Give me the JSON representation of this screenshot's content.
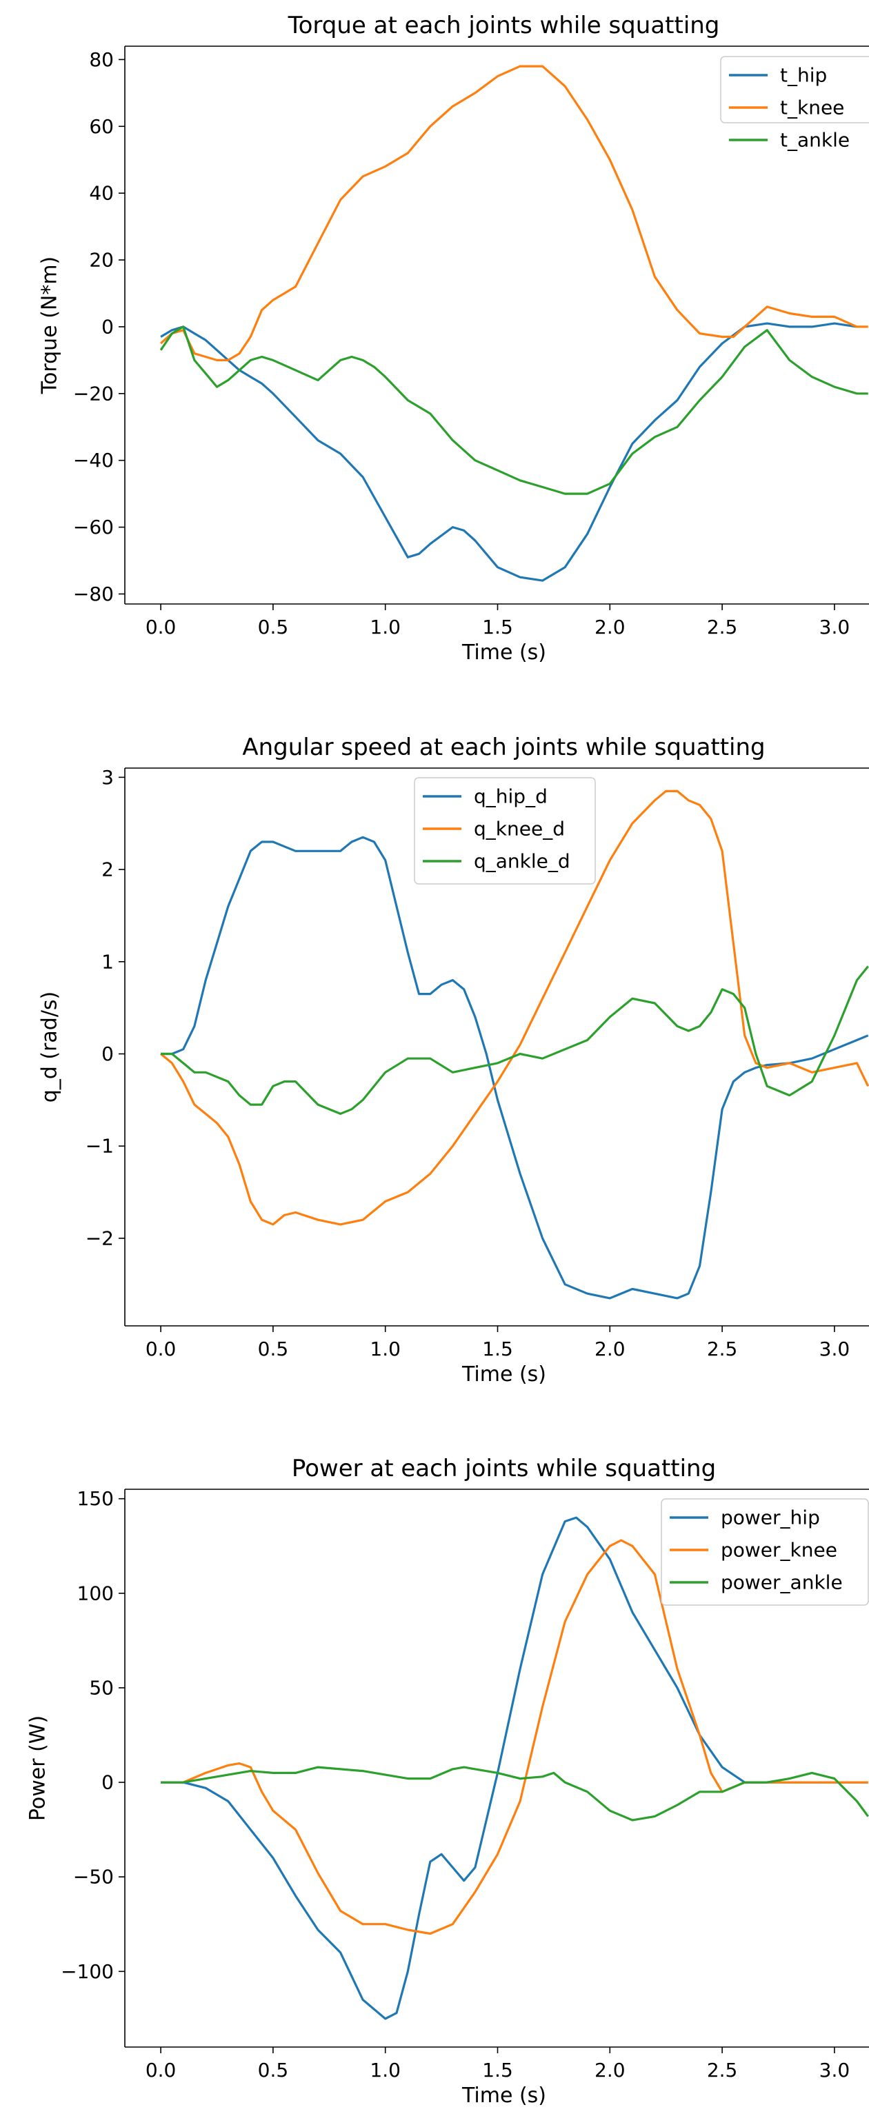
{
  "colors": {
    "blue": "#1f77b4",
    "orange": "#ff7f0e",
    "green": "#2ca02c"
  },
  "chart_data": [
    {
      "type": "line",
      "title": "Torque at each joints while squatting",
      "xlabel": "Time (s)",
      "ylabel": "Torque (N*m)",
      "xlim": [
        -0.16,
        3.16
      ],
      "ylim": [
        -83,
        84
      ],
      "xticks": [
        0.0,
        0.5,
        1.0,
        1.5,
        2.0,
        2.5,
        3.0
      ],
      "xtick_labels": [
        "0.0",
        "0.5",
        "1.0",
        "1.5",
        "2.0",
        "2.5",
        "3.0"
      ],
      "yticks": [
        -80,
        -60,
        -40,
        -20,
        0,
        20,
        40,
        60,
        80
      ],
      "ytick_labels": [
        "−80",
        "−60",
        "−40",
        "−20",
        "0",
        "20",
        "40",
        "60",
        "80"
      ],
      "legend": "top-right",
      "grid": false,
      "series": [
        {
          "name": "t_hip",
          "color": "#1f77b4",
          "x": [
            0.0,
            0.05,
            0.1,
            0.15,
            0.2,
            0.25,
            0.3,
            0.35,
            0.4,
            0.45,
            0.5,
            0.6,
            0.7,
            0.8,
            0.9,
            1.0,
            1.1,
            1.15,
            1.2,
            1.3,
            1.35,
            1.4,
            1.5,
            1.6,
            1.7,
            1.8,
            1.9,
            2.0,
            2.1,
            2.2,
            2.3,
            2.4,
            2.5,
            2.6,
            2.7,
            2.8,
            2.9,
            3.0,
            3.1
          ],
          "y": [
            -3,
            -1,
            0,
            -2,
            -4,
            -7,
            -10,
            -13,
            -15,
            -17,
            -20,
            -27,
            -34,
            -38,
            -45,
            -57,
            -69,
            -68,
            -65,
            -60,
            -61,
            -64,
            -72,
            -75,
            -76,
            -72,
            -62,
            -48,
            -35,
            -28,
            -22,
            -12,
            -5,
            0,
            1,
            0,
            0,
            1,
            0
          ]
        },
        {
          "name": "t_knee",
          "color": "#ff7f0e",
          "x": [
            0.0,
            0.05,
            0.1,
            0.15,
            0.2,
            0.25,
            0.3,
            0.35,
            0.4,
            0.45,
            0.5,
            0.6,
            0.7,
            0.8,
            0.9,
            1.0,
            1.1,
            1.2,
            1.3,
            1.4,
            1.5,
            1.6,
            1.7,
            1.8,
            1.9,
            2.0,
            2.1,
            2.2,
            2.3,
            2.4,
            2.5,
            2.55,
            2.6,
            2.7,
            2.8,
            2.9,
            3.0,
            3.1,
            3.15
          ],
          "y": [
            -5,
            -2,
            -1,
            -8,
            -9,
            -10,
            -10,
            -8,
            -3,
            5,
            8,
            12,
            25,
            38,
            45,
            48,
            52,
            60,
            66,
            70,
            75,
            78,
            78,
            72,
            62,
            50,
            35,
            15,
            5,
            -2,
            -3,
            -3,
            0,
            6,
            4,
            3,
            3,
            0,
            0
          ]
        },
        {
          "name": "t_ankle",
          "color": "#2ca02c",
          "x": [
            0.0,
            0.05,
            0.1,
            0.15,
            0.2,
            0.25,
            0.3,
            0.35,
            0.4,
            0.45,
            0.5,
            0.6,
            0.7,
            0.8,
            0.85,
            0.9,
            0.95,
            1.0,
            1.1,
            1.2,
            1.3,
            1.4,
            1.5,
            1.6,
            1.7,
            1.8,
            1.9,
            2.0,
            2.1,
            2.2,
            2.3,
            2.4,
            2.5,
            2.6,
            2.7,
            2.8,
            2.9,
            3.0,
            3.1,
            3.15
          ],
          "y": [
            -7,
            -2,
            0,
            -10,
            -14,
            -18,
            -16,
            -13,
            -10,
            -9,
            -10,
            -13,
            -16,
            -10,
            -9,
            -10,
            -12,
            -15,
            -22,
            -26,
            -34,
            -40,
            -43,
            -46,
            -48,
            -50,
            -50,
            -47,
            -38,
            -33,
            -30,
            -22,
            -15,
            -6,
            -1,
            -10,
            -15,
            -18,
            -20,
            -20
          ]
        }
      ]
    },
    {
      "type": "line",
      "title": "Angular speed at each joints while squatting",
      "xlabel": "Time (s)",
      "ylabel": "q_d (rad/s)",
      "xlim": [
        -0.16,
        3.16
      ],
      "ylim": [
        -2.95,
        3.1
      ],
      "xticks": [
        0.0,
        0.5,
        1.0,
        1.5,
        2.0,
        2.5,
        3.0
      ],
      "xtick_labels": [
        "0.0",
        "0.5",
        "1.0",
        "1.5",
        "2.0",
        "2.5",
        "3.0"
      ],
      "yticks": [
        -2,
        -1,
        0,
        1,
        2,
        3
      ],
      "ytick_labels": [
        "−2",
        "−1",
        "0",
        "1",
        "2",
        "3"
      ],
      "legend": "upper center",
      "grid": false,
      "series": [
        {
          "name": "q_hip_d",
          "color": "#1f77b4",
          "x": [
            0.0,
            0.05,
            0.1,
            0.15,
            0.2,
            0.25,
            0.3,
            0.35,
            0.4,
            0.45,
            0.5,
            0.55,
            0.6,
            0.7,
            0.8,
            0.85,
            0.9,
            0.95,
            1.0,
            1.05,
            1.1,
            1.15,
            1.2,
            1.25,
            1.3,
            1.35,
            1.4,
            1.45,
            1.5,
            1.6,
            1.7,
            1.8,
            1.9,
            2.0,
            2.1,
            2.2,
            2.3,
            2.35,
            2.4,
            2.45,
            2.5,
            2.55,
            2.6,
            2.65,
            2.7,
            2.8,
            2.9,
            3.0,
            3.1,
            3.15
          ],
          "y": [
            0.0,
            0.0,
            0.05,
            0.3,
            0.8,
            1.2,
            1.6,
            1.9,
            2.2,
            2.3,
            2.3,
            2.25,
            2.2,
            2.2,
            2.2,
            2.3,
            2.35,
            2.3,
            2.1,
            1.6,
            1.1,
            0.65,
            0.65,
            0.75,
            0.8,
            0.7,
            0.4,
            0.0,
            -0.5,
            -1.3,
            -2.0,
            -2.5,
            -2.6,
            -2.65,
            -2.55,
            -2.6,
            -2.65,
            -2.6,
            -2.3,
            -1.5,
            -0.6,
            -0.3,
            -0.2,
            -0.15,
            -0.12,
            -0.1,
            -0.05,
            0.05,
            0.15,
            0.2
          ]
        },
        {
          "name": "q_knee_d",
          "color": "#ff7f0e",
          "x": [
            0.0,
            0.05,
            0.1,
            0.15,
            0.2,
            0.25,
            0.3,
            0.35,
            0.4,
            0.45,
            0.5,
            0.55,
            0.6,
            0.7,
            0.8,
            0.9,
            1.0,
            1.1,
            1.2,
            1.3,
            1.4,
            1.5,
            1.6,
            1.7,
            1.8,
            1.9,
            2.0,
            2.1,
            2.2,
            2.25,
            2.3,
            2.35,
            2.4,
            2.45,
            2.5,
            2.55,
            2.6,
            2.65,
            2.7,
            2.8,
            2.9,
            3.0,
            3.1,
            3.15
          ],
          "y": [
            0.0,
            -0.1,
            -0.3,
            -0.55,
            -0.65,
            -0.75,
            -0.9,
            -1.2,
            -1.6,
            -1.8,
            -1.85,
            -1.75,
            -1.72,
            -1.8,
            -1.85,
            -1.8,
            -1.6,
            -1.5,
            -1.3,
            -1.0,
            -0.65,
            -0.3,
            0.1,
            0.6,
            1.1,
            1.6,
            2.1,
            2.5,
            2.75,
            2.85,
            2.85,
            2.75,
            2.7,
            2.55,
            2.2,
            1.2,
            0.2,
            -0.1,
            -0.15,
            -0.1,
            -0.2,
            -0.15,
            -0.1,
            -0.35
          ]
        },
        {
          "name": "q_ankle_d",
          "color": "#2ca02c",
          "x": [
            0.0,
            0.05,
            0.1,
            0.15,
            0.2,
            0.3,
            0.35,
            0.4,
            0.45,
            0.5,
            0.55,
            0.6,
            0.7,
            0.8,
            0.85,
            0.9,
            1.0,
            1.1,
            1.2,
            1.3,
            1.4,
            1.5,
            1.6,
            1.7,
            1.8,
            1.9,
            2.0,
            2.1,
            2.2,
            2.3,
            2.35,
            2.4,
            2.45,
            2.5,
            2.55,
            2.6,
            2.65,
            2.7,
            2.8,
            2.9,
            3.0,
            3.1,
            3.15
          ],
          "y": [
            0.0,
            0.0,
            -0.1,
            -0.2,
            -0.2,
            -0.3,
            -0.45,
            -0.55,
            -0.55,
            -0.35,
            -0.3,
            -0.3,
            -0.55,
            -0.65,
            -0.6,
            -0.5,
            -0.2,
            -0.05,
            -0.05,
            -0.2,
            -0.15,
            -0.1,
            0.0,
            -0.05,
            0.05,
            0.15,
            0.4,
            0.6,
            0.55,
            0.3,
            0.25,
            0.3,
            0.45,
            0.7,
            0.65,
            0.5,
            0.0,
            -0.35,
            -0.45,
            -0.3,
            0.2,
            0.8,
            0.95
          ]
        }
      ]
    },
    {
      "type": "line",
      "title": "Power at each joints while squatting",
      "xlabel": "Time (s)",
      "ylabel": "Power (W)",
      "xlim": [
        -0.16,
        3.16
      ],
      "ylim": [
        -140,
        155
      ],
      "xticks": [
        0.0,
        0.5,
        1.0,
        1.5,
        2.0,
        2.5,
        3.0
      ],
      "xtick_labels": [
        "0.0",
        "0.5",
        "1.0",
        "1.5",
        "2.0",
        "2.5",
        "3.0"
      ],
      "yticks": [
        -100,
        -50,
        0,
        50,
        100,
        150
      ],
      "ytick_labels": [
        "−100",
        "−50",
        "0",
        "50",
        "100",
        "150"
      ],
      "legend": "top-right",
      "grid": false,
      "series": [
        {
          "name": "power_hip",
          "color": "#1f77b4",
          "x": [
            0.0,
            0.1,
            0.2,
            0.3,
            0.4,
            0.5,
            0.6,
            0.7,
            0.8,
            0.9,
            1.0,
            1.05,
            1.1,
            1.15,
            1.2,
            1.25,
            1.3,
            1.35,
            1.4,
            1.5,
            1.6,
            1.7,
            1.8,
            1.85,
            1.9,
            2.0,
            2.1,
            2.2,
            2.3,
            2.4,
            2.5,
            2.6,
            2.7,
            2.8,
            2.9,
            3.0,
            3.1,
            3.15
          ],
          "y": [
            0,
            0,
            -3,
            -10,
            -25,
            -40,
            -60,
            -78,
            -90,
            -115,
            -125,
            -122,
            -100,
            -70,
            -42,
            -38,
            -45,
            -52,
            -45,
            5,
            60,
            110,
            138,
            140,
            135,
            118,
            90,
            70,
            50,
            25,
            8,
            0,
            0,
            0,
            0,
            0,
            0,
            0
          ]
        },
        {
          "name": "power_knee",
          "color": "#ff7f0e",
          "x": [
            0.0,
            0.1,
            0.2,
            0.3,
            0.35,
            0.4,
            0.45,
            0.5,
            0.6,
            0.7,
            0.8,
            0.9,
            1.0,
            1.1,
            1.2,
            1.3,
            1.4,
            1.5,
            1.6,
            1.7,
            1.8,
            1.9,
            2.0,
            2.05,
            2.1,
            2.2,
            2.3,
            2.4,
            2.45,
            2.5,
            2.6,
            2.7,
            2.8,
            2.9,
            3.0,
            3.1,
            3.15
          ],
          "y": [
            0,
            0,
            5,
            9,
            10,
            8,
            -5,
            -15,
            -25,
            -48,
            -68,
            -75,
            -75,
            -78,
            -80,
            -75,
            -58,
            -38,
            -10,
            40,
            85,
            110,
            125,
            128,
            125,
            110,
            60,
            25,
            5,
            -5,
            0,
            0,
            0,
            0,
            0,
            0,
            0
          ]
        },
        {
          "name": "power_ankle",
          "color": "#2ca02c",
          "x": [
            0.0,
            0.1,
            0.2,
            0.3,
            0.4,
            0.5,
            0.6,
            0.7,
            0.8,
            0.9,
            1.0,
            1.1,
            1.2,
            1.3,
            1.35,
            1.4,
            1.5,
            1.6,
            1.7,
            1.75,
            1.8,
            1.9,
            2.0,
            2.1,
            2.2,
            2.3,
            2.4,
            2.5,
            2.6,
            2.7,
            2.8,
            2.9,
            3.0,
            3.1,
            3.15
          ],
          "y": [
            0,
            0,
            2,
            4,
            6,
            5,
            5,
            8,
            7,
            6,
            4,
            2,
            2,
            7,
            8,
            7,
            5,
            2,
            3,
            5,
            0,
            -5,
            -15,
            -20,
            -18,
            -12,
            -5,
            -5,
            0,
            0,
            2,
            5,
            2,
            -10,
            -18
          ]
        }
      ]
    }
  ]
}
